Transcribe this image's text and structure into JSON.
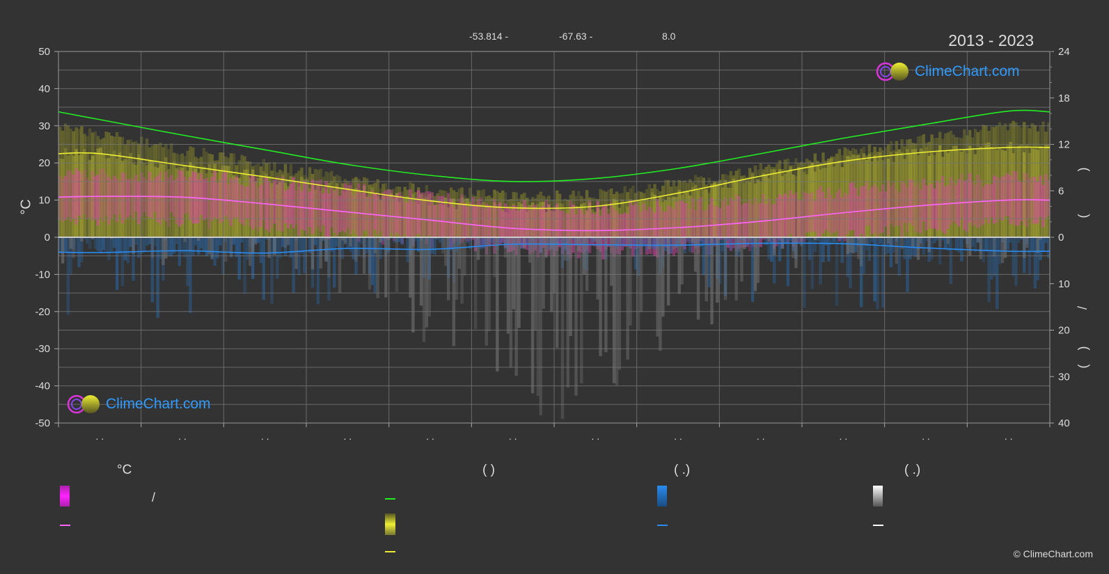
{
  "header": {
    "info": [
      "-53.814 -",
      "-67.63 -",
      "8.0"
    ],
    "period": "2013 - 2023"
  },
  "axes": {
    "left_unit": "°C",
    "right_labels": [
      ")",
      "(",
      "/",
      ")",
      "("
    ]
  },
  "legend": {
    "headings": [
      "°C",
      "(          )",
      "(   .)",
      "(   .)"
    ],
    "slash": "/"
  },
  "logo": {
    "text": "ClimeChart.com"
  },
  "copyright": "© ClimeChart.com",
  "colors": {
    "background": "#333333",
    "daylight": "#22ee22",
    "sunshine": "#eeee33",
    "temperature": "#ff66ff",
    "precipitation": "#2a8cf0",
    "snow": "#ffffff"
  },
  "chart_data": {
    "type": "line",
    "x_tick_labels": [
      ". .",
      ". .",
      ". .",
      ". .",
      ". .",
      ". .",
      ". .",
      ". .",
      ". .",
      ". .",
      ". .",
      ". ."
    ],
    "y_left": {
      "ticks": [
        50,
        40,
        30,
        20,
        10,
        0,
        -10,
        -20,
        -30,
        -40,
        -50
      ],
      "range": [
        -50,
        50
      ]
    },
    "y_right_top": {
      "ticks": [
        24,
        18,
        12,
        6,
        0
      ],
      "range": [
        0,
        24
      ]
    },
    "y_right_bottom": {
      "ticks": [
        10,
        20,
        30,
        40
      ],
      "range": [
        0,
        40
      ]
    },
    "grid": true,
    "series": [
      {
        "key": "daylight",
        "axis": "right_top",
        "points": [
          [
            0,
            16.2
          ],
          [
            0.5,
            15.2
          ],
          [
            1.5,
            13.2
          ],
          [
            2.5,
            11.3
          ],
          [
            3.5,
            9.4
          ],
          [
            4.5,
            8.0
          ],
          [
            5.5,
            7.2
          ],
          [
            6.5,
            7.6
          ],
          [
            7.5,
            8.9
          ],
          [
            8.5,
            10.8
          ],
          [
            9.5,
            12.8
          ],
          [
            10.5,
            14.6
          ],
          [
            11.5,
            16.3
          ],
          [
            12,
            16.2
          ]
        ]
      },
      {
        "key": "sunshine",
        "axis": "right_top",
        "points": [
          [
            0,
            10.8
          ],
          [
            0.5,
            10.8
          ],
          [
            1.5,
            9.3
          ],
          [
            2.5,
            7.8
          ],
          [
            3.5,
            6.2
          ],
          [
            4.5,
            4.7
          ],
          [
            5.5,
            3.8
          ],
          [
            6.5,
            4.0
          ],
          [
            7.5,
            5.7
          ],
          [
            8.5,
            7.9
          ],
          [
            9.5,
            9.8
          ],
          [
            10.5,
            11.0
          ],
          [
            11.5,
            11.6
          ],
          [
            12,
            11.6
          ]
        ]
      },
      {
        "key": "temperature",
        "axis": "left",
        "points": [
          [
            0,
            10.8
          ],
          [
            0.5,
            11.0
          ],
          [
            1.5,
            10.8
          ],
          [
            2.5,
            9.0
          ],
          [
            3.5,
            6.8
          ],
          [
            4.5,
            4.6
          ],
          [
            5.5,
            2.4
          ],
          [
            6.5,
            1.8
          ],
          [
            7.5,
            2.6
          ],
          [
            8.5,
            4.3
          ],
          [
            9.5,
            6.6
          ],
          [
            10.5,
            8.6
          ],
          [
            11.5,
            10.0
          ],
          [
            12,
            10.0
          ]
        ]
      },
      {
        "key": "precipitation",
        "axis": "right_bottom",
        "points": [
          [
            0,
            3.2
          ],
          [
            0.5,
            3.3
          ],
          [
            1.5,
            2.9
          ],
          [
            2.5,
            3.4
          ],
          [
            3.5,
            2.4
          ],
          [
            4.5,
            2.6
          ],
          [
            5.5,
            1.5
          ],
          [
            6.5,
            1.6
          ],
          [
            7.5,
            1.7
          ],
          [
            8.5,
            1.3
          ],
          [
            9.5,
            1.4
          ],
          [
            10.5,
            2.3
          ],
          [
            11.5,
            3.0
          ],
          [
            12,
            3.0
          ]
        ]
      }
    ]
  }
}
